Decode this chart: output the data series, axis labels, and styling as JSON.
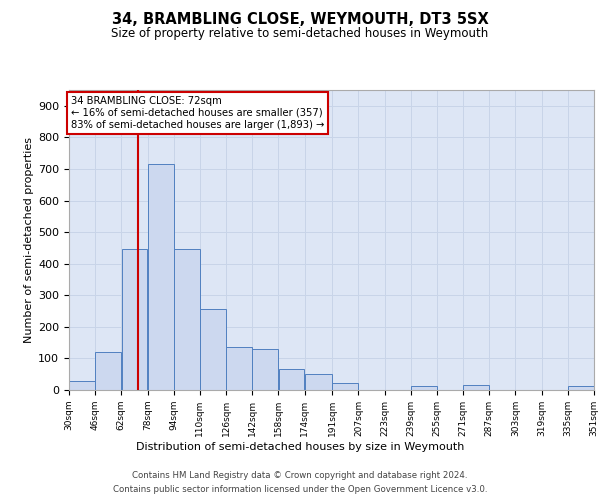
{
  "title1": "34, BRAMBLING CLOSE, WEYMOUTH, DT3 5SX",
  "title2": "Size of property relative to semi-detached houses in Weymouth",
  "xlabel": "Distribution of semi-detached houses by size in Weymouth",
  "ylabel": "Number of semi-detached properties",
  "footnote1": "Contains HM Land Registry data © Crown copyright and database right 2024.",
  "footnote2": "Contains public sector information licensed under the Open Government Licence v3.0.",
  "annotation_title": "34 BRAMBLING CLOSE: 72sqm",
  "annotation_line1": "← 16% of semi-detached houses are smaller (357)",
  "annotation_line2": "83% of semi-detached houses are larger (1,893) →",
  "bin_edges": [
    30,
    46,
    62,
    78,
    94,
    110,
    126,
    142,
    158,
    174,
    191,
    207,
    223,
    239,
    255,
    271,
    287,
    303,
    319,
    335,
    351
  ],
  "bin_labels": [
    "30sqm",
    "46sqm",
    "62sqm",
    "78sqm",
    "94sqm",
    "110sqm",
    "126sqm",
    "142sqm",
    "158sqm",
    "174sqm",
    "191sqm",
    "207sqm",
    "223sqm",
    "239sqm",
    "255sqm",
    "271sqm",
    "287sqm",
    "303sqm",
    "319sqm",
    "335sqm",
    "351sqm"
  ],
  "counts": [
    28,
    120,
    448,
    715,
    448,
    255,
    135,
    130,
    68,
    52,
    22,
    0,
    0,
    14,
    0,
    17,
    0,
    0,
    0,
    14
  ],
  "bar_fill": "#ccd8ef",
  "bar_edge": "#5080c0",
  "vline_color": "#cc0000",
  "vline_x": 72,
  "grid_color": "#c8d4e8",
  "bg_color": "#dde6f5",
  "annotation_box_color": "#cc0000",
  "ylim": [
    0,
    950
  ],
  "yticks": [
    0,
    100,
    200,
    300,
    400,
    500,
    600,
    700,
    800,
    900
  ]
}
